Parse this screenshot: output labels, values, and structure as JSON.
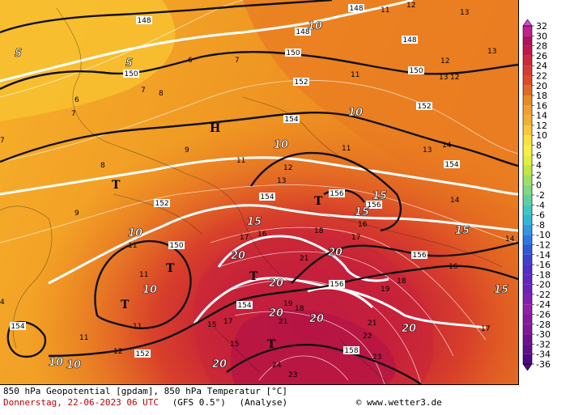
{
  "map": {
    "title": "850 hPa Geopotential [gpdam], 850 hPa Temperatur [°C]",
    "date_line": "Donnerstag, 22-06-2023  06 UTC",
    "model": "(GFS 0.5°)",
    "mode": "(Analyse)",
    "credit": "www.wetter3.de",
    "pressure_centers": [
      {
        "type": "high",
        "symbol": "H"
      },
      {
        "type": "low",
        "symbol": "T"
      }
    ],
    "geopotential_labels": [
      "148",
      "150",
      "152",
      "154",
      "156",
      "158"
    ],
    "isotherm_labels": [
      "5",
      "10",
      "15",
      "20"
    ],
    "colors": {
      "warm_light": "#f5a623",
      "warm_mid": "#e8781e",
      "hot": "#d4302a",
      "very_hot": "#b0104a"
    }
  },
  "legend": {
    "labels": [
      "32",
      "30",
      "28",
      "26",
      "24",
      "22",
      "20",
      "18",
      "16",
      "14",
      "12",
      "10",
      "8",
      "6",
      "4",
      "2",
      "0",
      "-2",
      "-4",
      "-6",
      "-8",
      "-10",
      "-12",
      "-14",
      "-16",
      "-18",
      "-20",
      "-22",
      "-24",
      "-26",
      "-28",
      "-30",
      "-32",
      "-34",
      "-36"
    ],
    "colors": [
      "#e040e0",
      "#c02090",
      "#b01060",
      "#c0184a",
      "#d02a3a",
      "#d83a30",
      "#e04a2a",
      "#e06a28",
      "#e88a28",
      "#f0a030",
      "#f0b030",
      "#f8c838",
      "#fbe040",
      "#f8f040",
      "#e0f040",
      "#c0e840",
      "#a0e060",
      "#80d880",
      "#60d0a0",
      "#40c8c0",
      "#30b8d8",
      "#3098e0",
      "#3078e0",
      "#3058d8",
      "#4040d0",
      "#5030c8",
      "#6028c0",
      "#7020b8",
      "#8020b0",
      "#9020a8",
      "#8818a0",
      "#801898",
      "#701090",
      "#601088",
      "#500880"
    ]
  }
}
